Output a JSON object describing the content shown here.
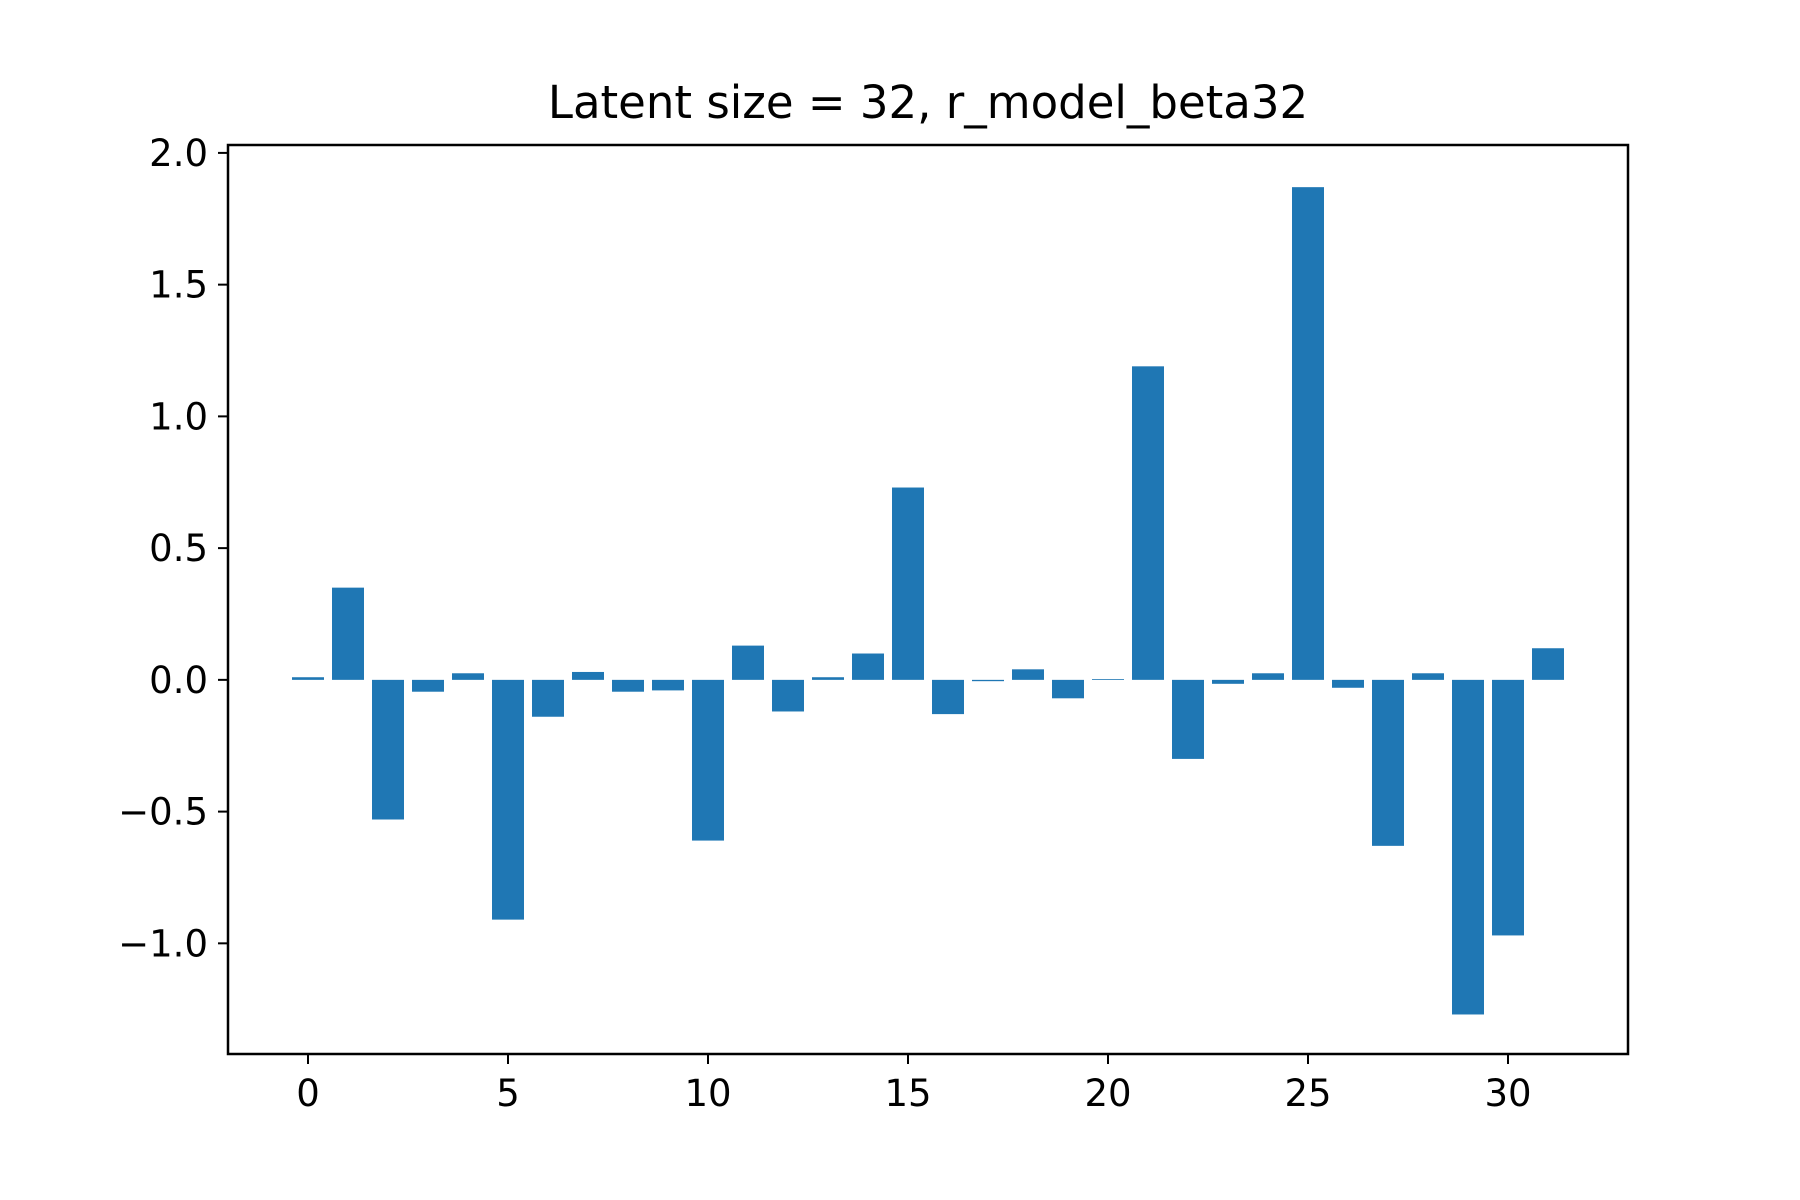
{
  "chart_data": {
    "type": "bar",
    "title": "Latent size = 32, r_model_beta32",
    "xlabel": "",
    "ylabel": "",
    "bar_color": "#1f77b4",
    "xlim": [
      -2,
      33
    ],
    "ylim": [
      -1.42,
      2.03
    ],
    "x_ticks": [
      0,
      5,
      10,
      15,
      20,
      25,
      30
    ],
    "x_tick_labels": [
      "0",
      "5",
      "10",
      "15",
      "20",
      "25",
      "30"
    ],
    "y_ticks": [
      -1.0,
      -0.5,
      0.0,
      0.5,
      1.0,
      1.5,
      2.0
    ],
    "y_tick_labels": [
      "−1.0",
      "−0.5",
      "0.0",
      "0.5",
      "1.0",
      "1.5",
      "2.0"
    ],
    "grid": false,
    "legend": "none",
    "categories": [
      0,
      1,
      2,
      3,
      4,
      5,
      6,
      7,
      8,
      9,
      10,
      11,
      12,
      13,
      14,
      15,
      16,
      17,
      18,
      19,
      20,
      21,
      22,
      23,
      24,
      25,
      26,
      27,
      28,
      29,
      30,
      31
    ],
    "values": [
      0.01,
      0.35,
      -0.53,
      -0.045,
      0.025,
      -0.91,
      -0.14,
      0.03,
      -0.045,
      -0.04,
      -0.61,
      0.13,
      -0.12,
      0.01,
      0.1,
      0.73,
      -0.13,
      -0.005,
      0.04,
      -0.07,
      0.003,
      1.19,
      -0.3,
      -0.015,
      0.025,
      1.87,
      -0.03,
      -0.63,
      0.025,
      -1.27,
      -0.97,
      0.12
    ]
  }
}
